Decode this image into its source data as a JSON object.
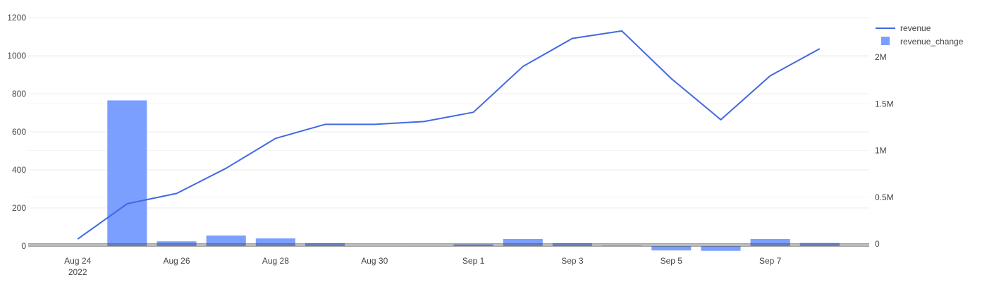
{
  "chart_data": {
    "type": "bar",
    "title": "",
    "xlabel": "",
    "ylabel": "",
    "x_axis": {
      "ticks": [
        {
          "date": "2022-08-24",
          "label": "Aug 24",
          "sublabel": "2022"
        },
        {
          "date": "2022-08-26",
          "label": "Aug 26",
          "sublabel": ""
        },
        {
          "date": "2022-08-28",
          "label": "Aug 28",
          "sublabel": ""
        },
        {
          "date": "2022-08-30",
          "label": "Aug 30",
          "sublabel": ""
        },
        {
          "date": "2022-09-01",
          "label": "Sep 1",
          "sublabel": ""
        },
        {
          "date": "2022-09-03",
          "label": "Sep 3",
          "sublabel": ""
        },
        {
          "date": "2022-09-05",
          "label": "Sep 5",
          "sublabel": ""
        },
        {
          "date": "2022-09-07",
          "label": "Sep 7",
          "sublabel": ""
        }
      ],
      "range": [
        "2022-08-23",
        "2022-09-09"
      ]
    },
    "y_left": {
      "range": [
        0,
        1200
      ],
      "ticks": [
        0,
        200,
        400,
        600,
        800,
        1000,
        1200
      ],
      "tick_labels": [
        "0",
        "200",
        "400",
        "600",
        "800",
        "1000",
        "1200"
      ]
    },
    "y_right": {
      "range": [
        0,
        2400000
      ],
      "ticks": [
        0,
        500000,
        1000000,
        1500000,
        2000000
      ],
      "tick_labels": [
        "0",
        "0.5M",
        "1M",
        "1.5M",
        "2M"
      ]
    },
    "grid": true,
    "legend_position": "top-right",
    "series": [
      {
        "name": "revenue",
        "type": "line",
        "axis": "right",
        "color": "#4169e1",
        "points": [
          {
            "x": "2022-08-24",
            "y": 52000
          },
          {
            "x": "2022-08-25",
            "y": 430000
          },
          {
            "x": "2022-08-26",
            "y": 540000
          },
          {
            "x": "2022-08-27",
            "y": 810000
          },
          {
            "x": "2022-08-28",
            "y": 1130000
          },
          {
            "x": "2022-08-29",
            "y": 1280000
          },
          {
            "x": "2022-08-30",
            "y": 1280000
          },
          {
            "x": "2022-08-31",
            "y": 1310000
          },
          {
            "x": "2022-09-01",
            "y": 1410000
          },
          {
            "x": "2022-09-02",
            "y": 1900000
          },
          {
            "x": "2022-09-03",
            "y": 2200000
          },
          {
            "x": "2022-09-04",
            "y": 2280000
          },
          {
            "x": "2022-09-05",
            "y": 1770000
          },
          {
            "x": "2022-09-06",
            "y": 1330000
          },
          {
            "x": "2022-09-07",
            "y": 1800000
          },
          {
            "x": "2022-09-08",
            "y": 2090000
          }
        ]
      },
      {
        "name": "revenue_change",
        "type": "bar",
        "axis": "left",
        "color": "#7b9fff",
        "points": [
          {
            "x": "2022-08-25",
            "y": 765
          },
          {
            "x": "2022-08-26",
            "y": 25
          },
          {
            "x": "2022-08-27",
            "y": 55
          },
          {
            "x": "2022-08-28",
            "y": 40
          },
          {
            "x": "2022-08-29",
            "y": 15
          },
          {
            "x": "2022-08-30",
            "y": 0
          },
          {
            "x": "2022-08-31",
            "y": 2
          },
          {
            "x": "2022-09-01",
            "y": 8
          },
          {
            "x": "2022-09-02",
            "y": 37
          },
          {
            "x": "2022-09-03",
            "y": 15
          },
          {
            "x": "2022-09-04",
            "y": 3
          },
          {
            "x": "2022-09-05",
            "y": -23
          },
          {
            "x": "2022-09-06",
            "y": -25
          },
          {
            "x": "2022-09-07",
            "y": 37
          },
          {
            "x": "2022-09-08",
            "y": 16
          }
        ]
      }
    ]
  }
}
